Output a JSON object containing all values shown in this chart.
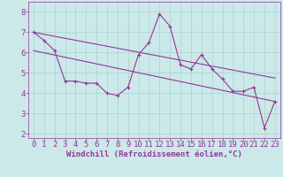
{
  "x": [
    0,
    1,
    2,
    3,
    4,
    5,
    6,
    7,
    8,
    9,
    10,
    11,
    12,
    13,
    14,
    15,
    16,
    17,
    18,
    19,
    20,
    21,
    22,
    23
  ],
  "y_main": [
    7.0,
    6.6,
    6.1,
    4.6,
    4.6,
    4.5,
    4.5,
    4.0,
    3.9,
    4.3,
    5.9,
    6.5,
    7.9,
    7.3,
    5.4,
    5.2,
    5.9,
    5.2,
    4.7,
    4.1,
    4.1,
    4.3,
    2.3,
    3.6
  ],
  "trend1_x": [
    0,
    23
  ],
  "trend1_y": [
    7.0,
    4.75
  ],
  "trend2_x": [
    0,
    23
  ],
  "trend2_y": [
    6.1,
    3.6
  ],
  "bg_color": "#cbe9e9",
  "line_color": "#993399",
  "trend_color": "#993399",
  "xlabel": "Windchill (Refroidissement éolien,°C)",
  "xticks": [
    0,
    1,
    2,
    3,
    4,
    5,
    6,
    7,
    8,
    9,
    10,
    11,
    12,
    13,
    14,
    15,
    16,
    17,
    18,
    19,
    20,
    21,
    22,
    23
  ],
  "yticks": [
    2,
    3,
    4,
    5,
    6,
    7,
    8
  ],
  "xlim": [
    -0.5,
    23.5
  ],
  "ylim": [
    1.8,
    8.5
  ],
  "grid_color": "#aad4cc",
  "xlabel_color": "#993399",
  "tick_color": "#993399",
  "font_size": 6.5,
  "marker_size": 3,
  "line_width": 0.8
}
